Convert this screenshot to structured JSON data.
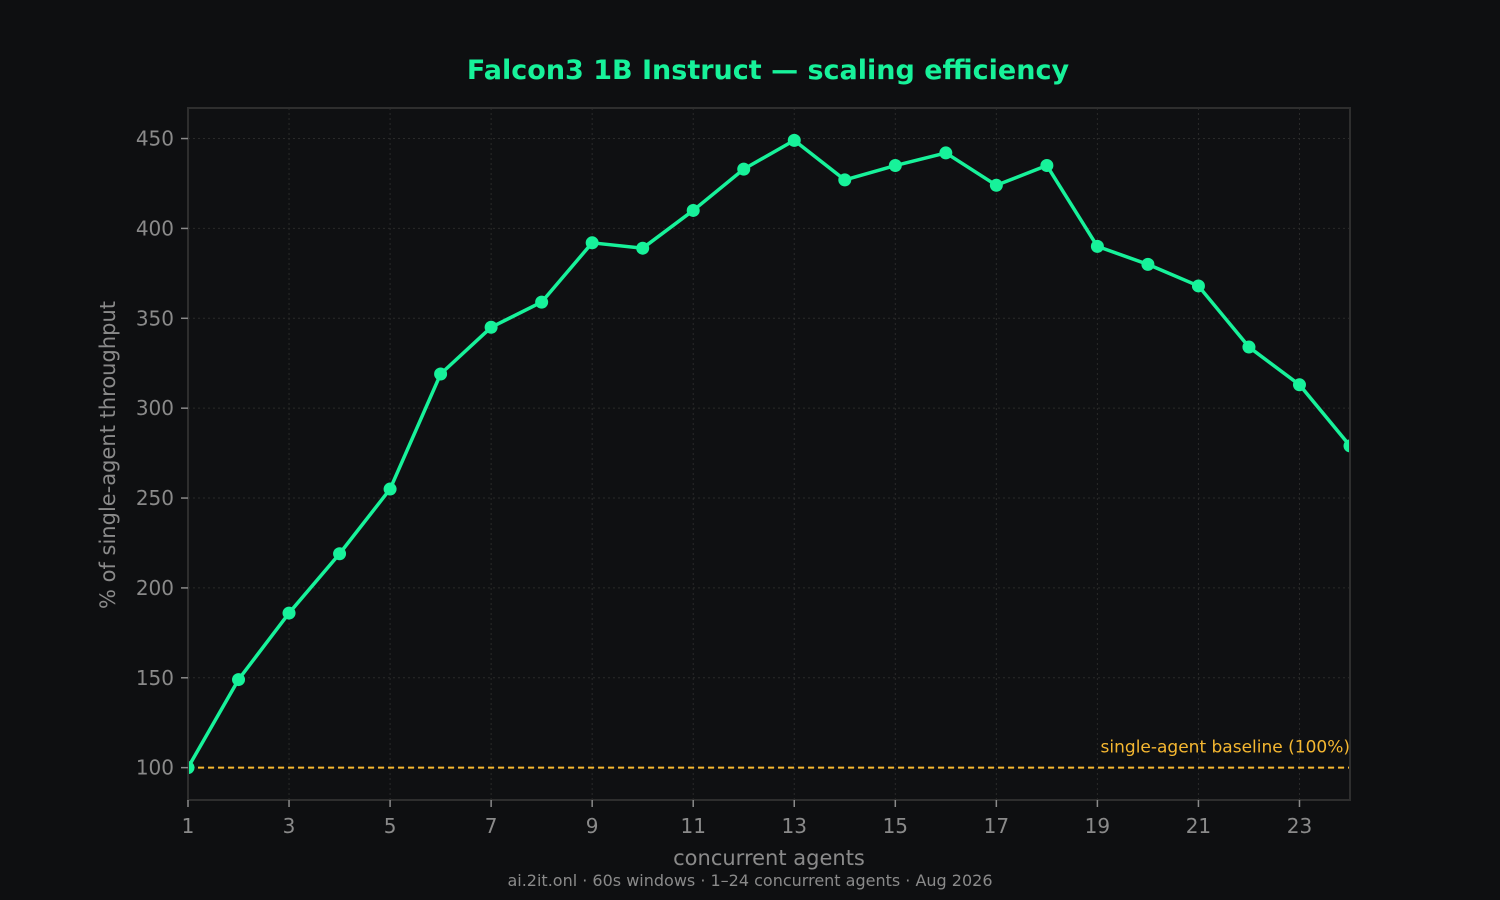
{
  "colors": {
    "background": "#0e0f11",
    "plot_background": "#0f1012",
    "series": "#17f29a",
    "baseline": "#f5b731",
    "text_muted": "#8a8a8a",
    "grid": "#2a2a2a",
    "frame": "#2e2e2e"
  },
  "footer": "ai.2it.onl · 60s windows · 1–24 concurrent agents · Aug 2026",
  "chart_data": {
    "type": "line",
    "title": "Falcon3 1B Instruct — scaling efficiency",
    "xlabel": "concurrent agents",
    "ylabel": "% of single-agent throughput",
    "xlim": [
      1,
      24
    ],
    "ylim": [
      82,
      467
    ],
    "x_ticks": [
      1,
      3,
      5,
      7,
      9,
      11,
      13,
      15,
      17,
      19,
      21,
      23
    ],
    "y_ticks": [
      100,
      150,
      200,
      250,
      300,
      350,
      400,
      450
    ],
    "grid": true,
    "x": [
      1,
      2,
      3,
      4,
      5,
      6,
      7,
      8,
      9,
      10,
      11,
      12,
      13,
      14,
      15,
      16,
      17,
      18,
      19,
      20,
      21,
      22,
      23,
      24
    ],
    "series": [
      {
        "values": [
          100,
          149,
          186,
          219,
          255,
          319,
          345,
          359,
          392,
          389,
          410,
          433,
          449,
          427,
          435,
          442,
          424,
          435,
          390,
          380,
          368,
          334,
          313,
          279
        ]
      }
    ],
    "reference_line": {
      "y": 100,
      "label": "single-agent baseline (100%)"
    }
  }
}
